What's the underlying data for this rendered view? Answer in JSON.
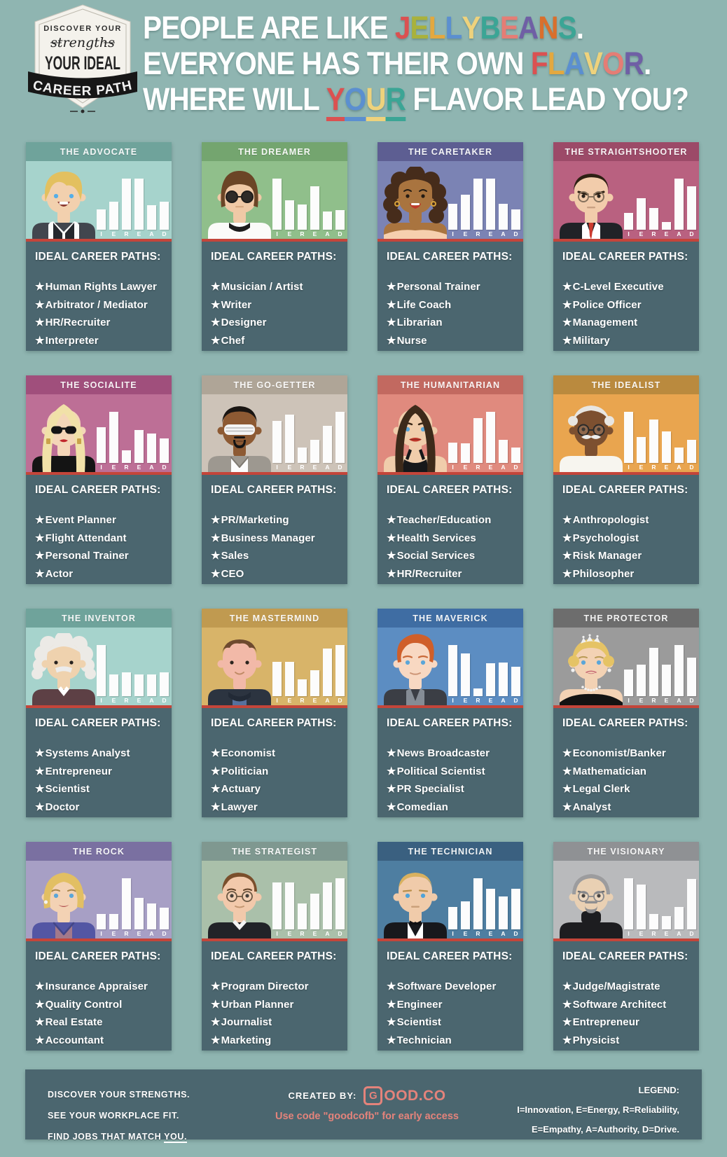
{
  "page": {
    "background": "#8fb5b1"
  },
  "badge": {
    "line1": "DISCOVER YOUR",
    "line2": "strengths",
    "line3": "YOUR IDEAL",
    "ribbon": "CAREER PATH"
  },
  "title": {
    "lines": [
      [
        {
          "t": "PEOPLE ARE LIKE ",
          "c": "#ffffff"
        },
        {
          "t": "J",
          "c": "#db5151"
        },
        {
          "t": "E",
          "c": "#a9b23c"
        },
        {
          "t": "L",
          "c": "#e3a83f"
        },
        {
          "t": "L",
          "c": "#5b8fd0"
        },
        {
          "t": "Y",
          "c": "#eed27c"
        },
        {
          "t": "B",
          "c": "#3ba595"
        },
        {
          "t": "E",
          "c": "#e57d75"
        },
        {
          "t": "A",
          "c": "#6f5fa5"
        },
        {
          "t": "N",
          "c": "#d96f2d"
        },
        {
          "t": "S",
          "c": "#3ba595"
        },
        {
          "t": ".",
          "c": "#ffffff"
        }
      ],
      [
        {
          "t": "EVERYONE HAS THEIR OWN ",
          "c": "#ffffff"
        },
        {
          "t": "F",
          "c": "#db5151"
        },
        {
          "t": "L",
          "c": "#e3a83f"
        },
        {
          "t": "A",
          "c": "#5b8fd0"
        },
        {
          "t": "V",
          "c": "#eed27c"
        },
        {
          "t": "O",
          "c": "#e57d75"
        },
        {
          "t": "R",
          "c": "#6f5fa5"
        },
        {
          "t": ".",
          "c": "#ffffff"
        }
      ],
      [
        {
          "t": "WHERE WILL ",
          "c": "#ffffff"
        },
        {
          "t": "Y",
          "c": "#db5151",
          "u": true
        },
        {
          "t": "O",
          "c": "#5b8fd0",
          "u": true
        },
        {
          "t": "U",
          "c": "#eed27c",
          "u": true
        },
        {
          "t": "R",
          "c": "#3ba595",
          "u": true
        },
        {
          "t": " FLAVOR LEAD YOU?",
          "c": "#ffffff"
        }
      ]
    ]
  },
  "careers_heading": "IDEAL CAREER PATHS:",
  "chart_letters": [
    "I",
    "E",
    "R",
    "E",
    "A",
    "D"
  ],
  "cards": [
    {
      "name": "THE ADVOCATE",
      "bg": "#a6d3cc",
      "header": "#6fa39b",
      "values": [
        0.4,
        0.55,
        1.0,
        1.0,
        0.48,
        0.55
      ],
      "careers": [
        "Human Rights Lawyer",
        "Arbitrator / Mediator",
        "HR/Recruiter",
        "Interpreter"
      ],
      "avatar": {
        "id": "ellen",
        "label": "blonde-talkshow-host-avatar",
        "skin": "#f2d0ae",
        "hair": "#e3c05f",
        "c1": "#42464e",
        "c2": "#fafafa",
        "c3": "#24262c"
      }
    },
    {
      "name": "THE DREAMER",
      "bg": "#90bf8b",
      "header": "#74a56f",
      "values": [
        1.0,
        0.58,
        0.49,
        0.85,
        0.35,
        0.39
      ],
      "careers": [
        "Musician / Artist",
        "Writer",
        "Designer",
        "Chef"
      ],
      "avatar": {
        "id": "lennon",
        "label": "round-glasses-musician-avatar",
        "skin": "#f0c9a6",
        "hair": "#6b4526",
        "c1": "#fbfbf9",
        "c2": "#1d1d1d",
        "c3": "#2f2b28"
      }
    },
    {
      "name": "THE CARETAKER",
      "bg": "#7b83b4",
      "header": "#5d5e92",
      "values": [
        0.51,
        0.69,
        1.0,
        1.0,
        0.51,
        0.4
      ],
      "careers": [
        "Personal Trainer",
        "Life Coach",
        "Librarian",
        "Nurse"
      ],
      "avatar": {
        "id": "oprah",
        "label": "curly-hair-media-host-avatar",
        "skin": "#a9743f",
        "hair": "#462c1b",
        "c1": "#f6cfae",
        "c2": "#c0392b",
        "c3": "#d9a43b"
      }
    },
    {
      "name": "THE STRAIGHTSHOOTER",
      "bg": "#b96180",
      "header": "#9c4a68",
      "values": [
        0.33,
        0.62,
        0.42,
        0.15,
        1.0,
        0.85
      ],
      "careers": [
        "C-Level Executive",
        "Police Officer",
        "Management",
        "Military"
      ],
      "avatar": {
        "id": "exec",
        "label": "stern-executive-avatar",
        "skin": "#f2ccab",
        "hair": "#2e2013",
        "c1": "#202227",
        "c2": "#ffffff",
        "c3": "#cc3b2f"
      }
    },
    {
      "name": "THE SOCIALITE",
      "bg": "#bd6f96",
      "header": "#a04f7c",
      "values": [
        0.7,
        1.0,
        0.24,
        0.65,
        0.58,
        0.48
      ],
      "careers": [
        "Event Planner",
        "Flight Attendant",
        "Personal Trainer",
        "Actor"
      ],
      "avatar": {
        "id": "gaga",
        "label": "pop-star-sunglasses-avatar",
        "skin": "#f4d6b8",
        "hair": "#f1e1a8",
        "c1": "#141414",
        "c2": "#c1272d",
        "c3": "#caa24a"
      }
    },
    {
      "name": "THE GO-GETTER",
      "bg": "#cdc3b8",
      "header": "#afa597",
      "values": [
        0.82,
        0.95,
        0.3,
        0.45,
        0.72,
        1.0
      ],
      "careers": [
        "PR/Marketing",
        "Business Manager",
        "Sales",
        "CEO"
      ],
      "avatar": {
        "id": "kanye",
        "label": "shutter-shades-rapper-avatar",
        "skin": "#8d5a33",
        "hair": "#191512",
        "c1": "#9d9890",
        "c2": "#fcfcfc",
        "c3": "#f4f4f4"
      }
    },
    {
      "name": "THE HUMANITARIAN",
      "bg": "#e08a7e",
      "header": "#c26960",
      "values": [
        0.4,
        0.38,
        0.88,
        1.0,
        0.45,
        0.3
      ],
      "careers": [
        "Teacher/Education",
        "Health Services",
        "Social Services",
        "HR/Recruiter"
      ],
      "avatar": {
        "id": "angelina",
        "label": "long-hair-actress-avatar",
        "skin": "#f0cdab",
        "hair": "#3d2a1a",
        "c1": "#17181a",
        "c2": "#c0392b",
        "c3": "#3a2817"
      }
    },
    {
      "name": "THE IDEALIST",
      "bg": "#e9a54f",
      "header": "#ba8a3e",
      "values": [
        1.0,
        0.5,
        0.85,
        0.62,
        0.3,
        0.45
      ],
      "careers": [
        "Anthropologist",
        "Psychologist",
        "Risk Manager",
        "Philosopher"
      ],
      "avatar": {
        "id": "elder",
        "label": "white-haired-elder-avatar",
        "skin": "#7d5030",
        "hair": "#e8e6e2",
        "c1": "#f7f5ef",
        "c2": "#2a2a2a",
        "c3": "#ededed"
      }
    },
    {
      "name": "THE INVENTOR",
      "bg": "#a6d3cc",
      "header": "#6fa39b",
      "values": [
        1.0,
        0.43,
        0.46,
        0.43,
        0.43,
        0.46
      ],
      "careers": [
        "Systems Analyst",
        "Entrepreneur",
        "Scientist",
        "Doctor"
      ],
      "avatar": {
        "id": "einstein",
        "label": "wild-hair-scientist-avatar",
        "skin": "#efd2ae",
        "hair": "#eceae6",
        "c1": "#5d4045",
        "c2": "#ffffff",
        "c3": "#ececec"
      }
    },
    {
      "name": "THE MASTERMIND",
      "bg": "#d8b469",
      "header": "#c09a50",
      "values": [
        0.67,
        0.67,
        0.33,
        0.5,
        0.93,
        1.0
      ],
      "careers": [
        "Economist",
        "Politician",
        "Actuary",
        "Lawyer"
      ],
      "avatar": {
        "id": "zuck",
        "label": "hoodie-founder-avatar",
        "skin": "#f2b9a8",
        "hair": "#6e4a2f",
        "c1": "#2c3440",
        "c2": "#56719e",
        "c3": "#222a36"
      }
    },
    {
      "name": "THE MAVERICK",
      "bg": "#5c8dc2",
      "header": "#3f6da3",
      "values": [
        1.0,
        0.83,
        0.15,
        0.64,
        0.66,
        0.58
      ],
      "careers": [
        "News Broadcaster",
        "Political Scientist",
        "PR Specialist",
        "Comedian"
      ],
      "avatar": {
        "id": "conan",
        "label": "pompadour-comedian-avatar",
        "skin": "#f8d8c2",
        "hair": "#cf5f2a",
        "c1": "#3b3e45",
        "c2": "#858c95",
        "c3": "#c96a3a"
      }
    },
    {
      "name": "THE PROTECTOR",
      "bg": "#9b9b9b",
      "header": "#6d6d6d",
      "values": [
        0.52,
        0.61,
        0.94,
        0.62,
        1.0,
        0.76
      ],
      "careers": [
        "Economist/Banker",
        "Mathematician",
        "Legal Clerk",
        "Analyst"
      ],
      "avatar": {
        "id": "diana",
        "label": "tiara-princess-avatar",
        "skin": "#f3d2b4",
        "hair": "#e5c365",
        "c1": "#131313",
        "c2": "#f2f2f2",
        "c3": "#c66a74"
      }
    },
    {
      "name": "THE ROCK",
      "bg": "#a79fc5",
      "header": "#7a70a1",
      "values": [
        0.3,
        0.3,
        1.0,
        0.61,
        0.51,
        0.43
      ],
      "careers": [
        "Insurance Appraiser",
        "Quality Control",
        "Real Estate",
        "Accountant"
      ],
      "avatar": {
        "id": "hillary",
        "label": "blonde-bob-politician-avatar",
        "skin": "#f3d2b4",
        "hair": "#e2bf63",
        "c1": "#5356a4",
        "c2": "#a2798b",
        "c3": "#b25050"
      }
    },
    {
      "name": "THE STRATEGIST",
      "bg": "#aac0aa",
      "header": "#7f9890",
      "values": [
        0.92,
        0.92,
        0.5,
        0.7,
        0.92,
        1.0
      ],
      "careers": [
        "Program Director",
        "Urban Planner",
        "Journalist",
        "Marketing"
      ],
      "avatar": {
        "id": "strategist",
        "label": "glasses-director-avatar",
        "skin": "#f2c9ab",
        "hair": "#7a4f2c",
        "c1": "#212328",
        "c2": "#f4f4f4",
        "c3": "#6b5742"
      }
    },
    {
      "name": "THE TECHNICIAN",
      "bg": "#4e7ea1",
      "header": "#3a6080",
      "values": [
        0.44,
        0.55,
        1.0,
        0.8,
        0.64,
        0.8
      ],
      "careers": [
        "Software Developer",
        "Engineer",
        "Scientist",
        "Technician"
      ],
      "avatar": {
        "id": "bond",
        "label": "tuxedo-agent-avatar",
        "skin": "#f0cbaa",
        "hair": "#d9b15f",
        "c1": "#17181c",
        "c2": "#ffffff",
        "c3": "#101013"
      }
    },
    {
      "name": "THE VISIONARY",
      "bg": "#b9babc",
      "header": "#8f9194",
      "values": [
        1.0,
        0.87,
        0.3,
        0.26,
        0.44,
        0.98
      ],
      "careers": [
        "Judge/Magistrate",
        "Software Architect",
        "Entrepreneur",
        "Physicist"
      ],
      "avatar": {
        "id": "jobs",
        "label": "turtleneck-visionary-avatar",
        "skin": "#e9d0b3",
        "hair": "#9c9c9e",
        "c1": "#1d1d20",
        "c2": "#8a8a8c",
        "c3": "#8f8f91"
      }
    }
  ],
  "footer": {
    "left_lines": [
      "DISCOVER YOUR STRENGTHS.",
      "SEE YOUR WORKPLACE FIT."
    ],
    "left_last_prefix": "FIND JOBS THAT MATCH ",
    "left_last_underlined": "YOU.",
    "created_by_label": "CREATED BY:",
    "logo_g": "G",
    "logo_rest": "OOD.CO",
    "promo": "Use code \"goodcofb\" for early access",
    "legend_title": "LEGEND:",
    "legend_lines": [
      "I=Innovation, E=Energy, R=Reliability,",
      "E=Empathy, A=Authority, D=Drive."
    ],
    "accent": "#e4837b"
  }
}
